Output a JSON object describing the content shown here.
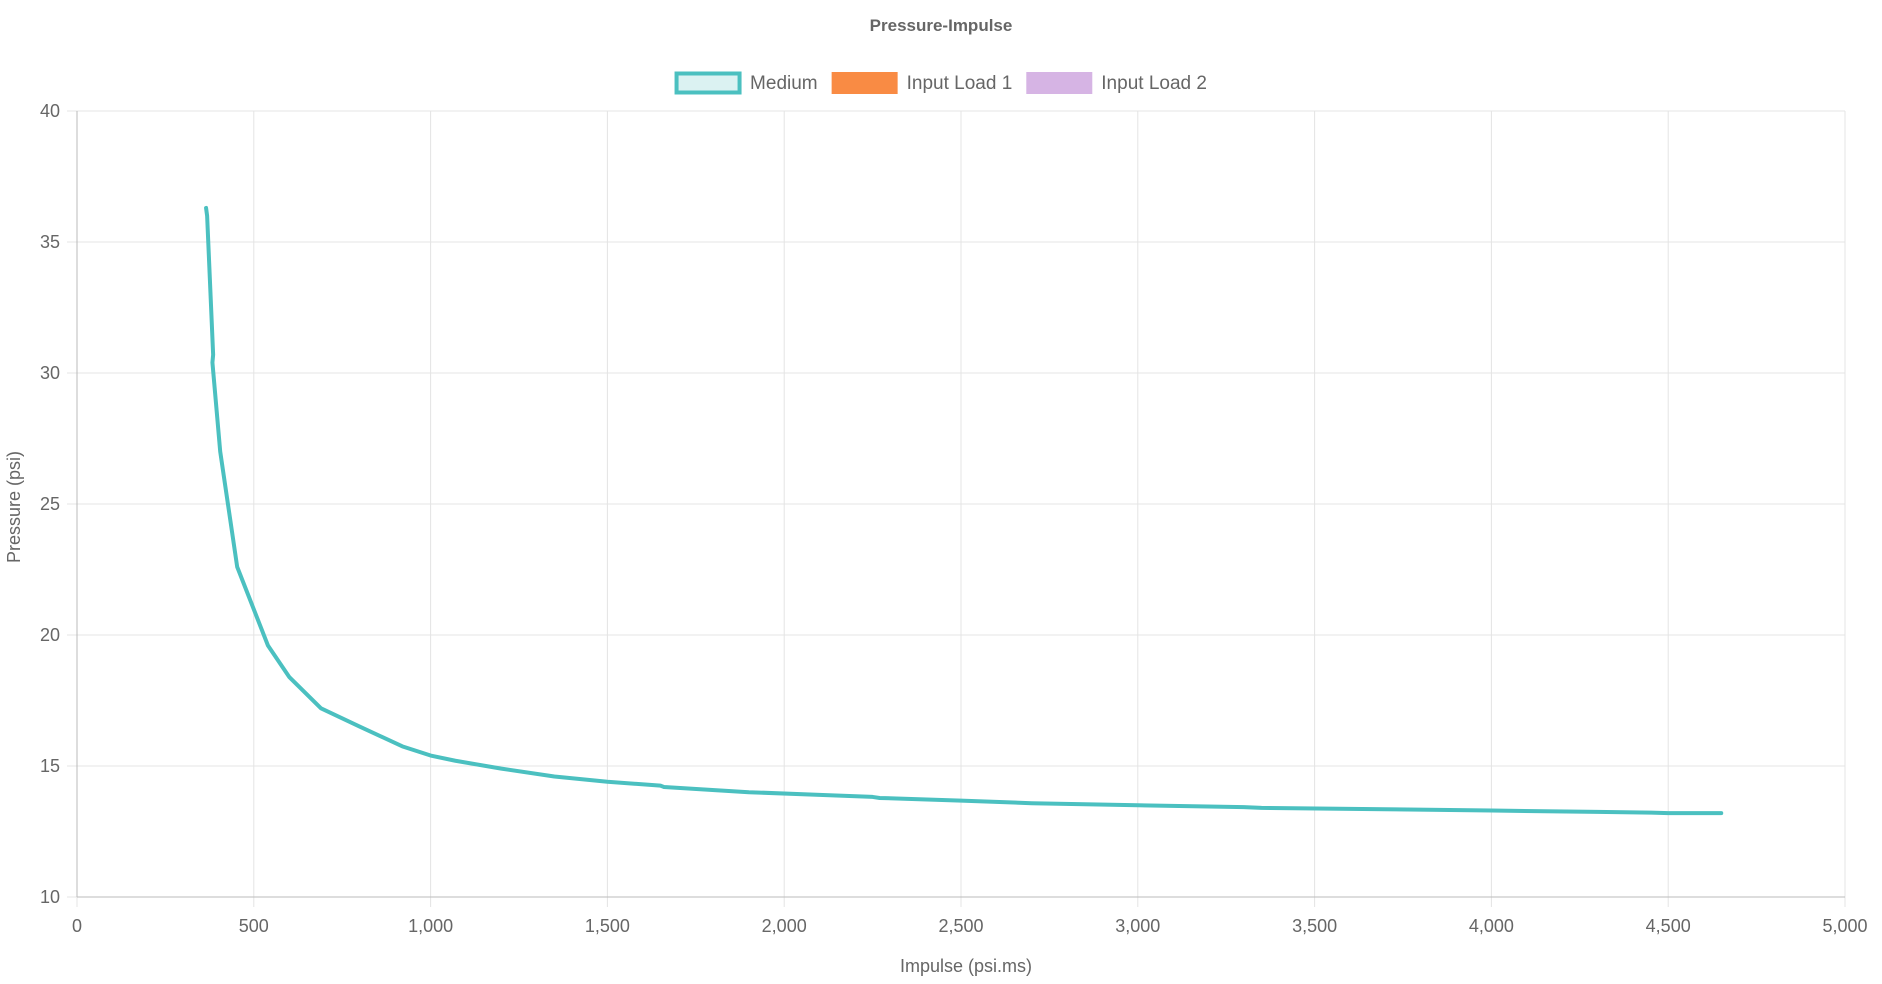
{
  "chart_data": {
    "type": "line",
    "title": "Pressure-Impulse",
    "xlabel": "Impulse (psi.ms)",
    "ylabel": "Pressure (psi)",
    "xlim": [
      0,
      5000
    ],
    "ylim": [
      10,
      40
    ],
    "x_ticks": [
      0,
      500,
      1000,
      1500,
      2000,
      2500,
      3000,
      3500,
      4000,
      4500,
      5000
    ],
    "x_tick_labels": [
      "0",
      "500",
      "1,000",
      "1,500",
      "2,000",
      "2,500",
      "3,000",
      "3,500",
      "4,000",
      "4,500",
      "5,000"
    ],
    "y_ticks": [
      10,
      15,
      20,
      25,
      30,
      35,
      40
    ],
    "y_tick_labels": [
      "10",
      "15",
      "20",
      "25",
      "30",
      "35",
      "40"
    ],
    "grid": true,
    "legend_position": "top-center",
    "series": [
      {
        "name": "Medium",
        "color": "#4bc0c0",
        "fill": "#dbf2f2",
        "points": [
          {
            "x": 365,
            "y": 36.3
          },
          {
            "x": 368,
            "y": 36.0
          },
          {
            "x": 385,
            "y": 30.7
          },
          {
            "x": 383,
            "y": 30.4
          },
          {
            "x": 405,
            "y": 27.0
          },
          {
            "x": 453,
            "y": 22.6
          },
          {
            "x": 540,
            "y": 19.6
          },
          {
            "x": 600,
            "y": 18.4
          },
          {
            "x": 690,
            "y": 17.2
          },
          {
            "x": 800,
            "y": 16.5
          },
          {
            "x": 920,
            "y": 15.75
          },
          {
            "x": 1000,
            "y": 15.4
          },
          {
            "x": 1070,
            "y": 15.2
          },
          {
            "x": 1200,
            "y": 14.9
          },
          {
            "x": 1350,
            "y": 14.6
          },
          {
            "x": 1500,
            "y": 14.4
          },
          {
            "x": 1650,
            "y": 14.25
          },
          {
            "x": 1660,
            "y": 14.2
          },
          {
            "x": 1900,
            "y": 14.0
          },
          {
            "x": 2100,
            "y": 13.9
          },
          {
            "x": 2250,
            "y": 13.82
          },
          {
            "x": 2270,
            "y": 13.78
          },
          {
            "x": 2500,
            "y": 13.68
          },
          {
            "x": 2700,
            "y": 13.58
          },
          {
            "x": 3000,
            "y": 13.5
          },
          {
            "x": 3300,
            "y": 13.43
          },
          {
            "x": 3350,
            "y": 13.4
          },
          {
            "x": 3700,
            "y": 13.35
          },
          {
            "x": 4000,
            "y": 13.3
          },
          {
            "x": 4300,
            "y": 13.25
          },
          {
            "x": 4450,
            "y": 13.22
          },
          {
            "x": 4500,
            "y": 13.2
          },
          {
            "x": 4650,
            "y": 13.2
          }
        ]
      },
      {
        "name": "Input Load 1",
        "color": "#ff9f40",
        "fill": "#f98b44",
        "points": []
      },
      {
        "name": "Input Load 2",
        "color": "#d6b4e4",
        "fill": "#d6b4e4",
        "points": []
      }
    ]
  },
  "colors": {
    "grid": "#e4e4e4",
    "axis": "#bbbbbb",
    "text": "#666666"
  }
}
